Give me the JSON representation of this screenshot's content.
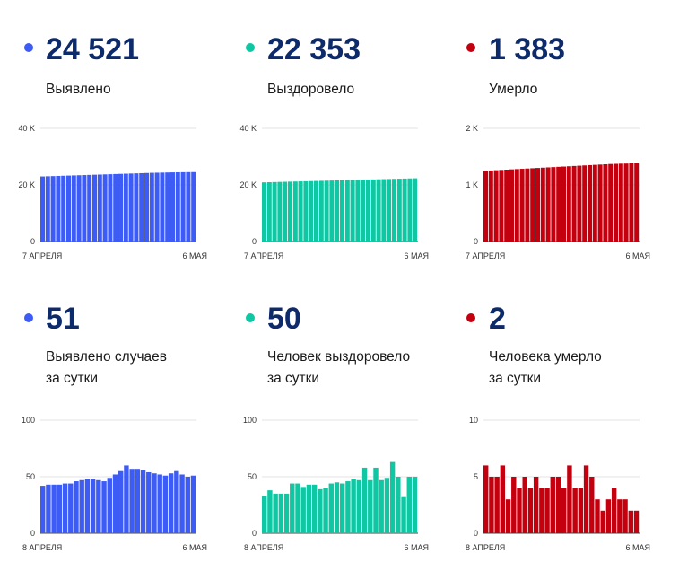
{
  "colors": {
    "blue": "#3d5cf5",
    "green": "#0fc7a3",
    "red": "#c4000f",
    "number": "#0d2a6b"
  },
  "panels": [
    {
      "value": "24 521",
      "label1": "Выявлено",
      "label2": ""
    },
    {
      "value": "22 353",
      "label1": "Выздоровело",
      "label2": ""
    },
    {
      "value": "1 383",
      "label1": "Умерло",
      "label2": ""
    },
    {
      "value": "51",
      "label1": "Выявлено случаев",
      "label2": "за сутки"
    },
    {
      "value": "50",
      "label1": "Человек выздоровело",
      "label2": "за сутки"
    },
    {
      "value": "2",
      "label1": "Человека умерло",
      "label2": "за сутки"
    }
  ],
  "chart_data": [
    {
      "type": "bar",
      "title": "",
      "xlabel": "",
      "ylabel": "",
      "x_tick_labels": [
        "7 АПРЕЛЯ",
        "6 МАЯ"
      ],
      "y_ticks": [
        0,
        20000,
        40000
      ],
      "y_tick_labels": [
        "0",
        "20 K",
        "40 K"
      ],
      "ylim": [
        0,
        40000
      ],
      "grid": true,
      "color": "blue",
      "values": [
        23000,
        23060,
        23120,
        23180,
        23240,
        23300,
        23360,
        23420,
        23480,
        23540,
        23600,
        23660,
        23720,
        23780,
        23840,
        23900,
        23960,
        24020,
        24080,
        24140,
        24200,
        24260,
        24300,
        24340,
        24380,
        24420,
        24450,
        24480,
        24500,
        24521
      ]
    },
    {
      "type": "bar",
      "title": "",
      "xlabel": "",
      "ylabel": "",
      "x_tick_labels": [
        "7 АПРЕЛЯ",
        "6 МАЯ"
      ],
      "y_ticks": [
        0,
        20000,
        40000
      ],
      "y_tick_labels": [
        "0",
        "20 K",
        "40 K"
      ],
      "ylim": [
        0,
        40000
      ],
      "grid": true,
      "color": "green",
      "values": [
        20900,
        20950,
        21000,
        21050,
        21100,
        21150,
        21200,
        21250,
        21300,
        21350,
        21400,
        21450,
        21500,
        21550,
        21600,
        21650,
        21700,
        21750,
        21800,
        21850,
        21900,
        21950,
        22000,
        22050,
        22100,
        22150,
        22200,
        22250,
        22300,
        22353
      ]
    },
    {
      "type": "bar",
      "title": "",
      "xlabel": "",
      "ylabel": "",
      "x_tick_labels": [
        "7 АПРЕЛЯ",
        "6 МАЯ"
      ],
      "y_ticks": [
        0,
        1000,
        2000
      ],
      "y_tick_labels": [
        "0",
        "1 K",
        "2 K"
      ],
      "ylim": [
        0,
        2000
      ],
      "grid": true,
      "color": "red",
      "values": [
        1250,
        1255,
        1260,
        1265,
        1270,
        1275,
        1280,
        1285,
        1290,
        1295,
        1300,
        1305,
        1310,
        1315,
        1320,
        1325,
        1330,
        1335,
        1340,
        1345,
        1350,
        1355,
        1360,
        1365,
        1370,
        1373,
        1376,
        1378,
        1381,
        1383
      ]
    },
    {
      "type": "bar",
      "title": "",
      "xlabel": "",
      "ylabel": "",
      "x_tick_labels": [
        "8 АПРЕЛЯ",
        "6 МАЯ"
      ],
      "y_ticks": [
        0,
        50,
        100
      ],
      "y_tick_labels": [
        "0",
        "50",
        "100"
      ],
      "ylim": [
        0,
        100
      ],
      "grid": true,
      "color": "blue",
      "values": [
        42,
        43,
        43,
        43,
        44,
        44,
        46,
        47,
        48,
        48,
        47,
        46,
        49,
        52,
        55,
        60,
        57,
        57,
        56,
        54,
        53,
        52,
        51,
        53,
        55,
        52,
        50,
        51
      ]
    },
    {
      "type": "bar",
      "title": "",
      "xlabel": "",
      "ylabel": "",
      "x_tick_labels": [
        "8 АПРЕЛЯ",
        "6 МАЯ"
      ],
      "y_ticks": [
        0,
        50,
        100
      ],
      "y_tick_labels": [
        "0",
        "50",
        "100"
      ],
      "ylim": [
        0,
        100
      ],
      "grid": true,
      "color": "green",
      "values": [
        33,
        38,
        35,
        35,
        35,
        44,
        44,
        41,
        43,
        43,
        39,
        40,
        44,
        45,
        44,
        46,
        48,
        47,
        58,
        47,
        58,
        47,
        49,
        63,
        50,
        32,
        50,
        50
      ]
    },
    {
      "type": "bar",
      "title": "",
      "xlabel": "",
      "ylabel": "",
      "x_tick_labels": [
        "8 АПРЕЛЯ",
        "6 МАЯ"
      ],
      "y_ticks": [
        0,
        5,
        10
      ],
      "y_tick_labels": [
        "0",
        "5",
        "10"
      ],
      "ylim": [
        0,
        10
      ],
      "grid": true,
      "color": "red",
      "values": [
        6,
        5,
        5,
        6,
        3,
        5,
        4,
        5,
        4,
        5,
        4,
        4,
        5,
        5,
        4,
        6,
        4,
        4,
        6,
        5,
        3,
        2,
        3,
        4,
        3,
        3,
        2,
        2
      ]
    }
  ]
}
